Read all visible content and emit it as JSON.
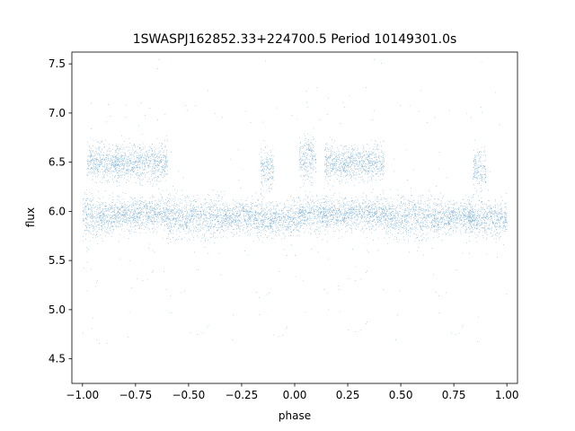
{
  "chart_data": {
    "type": "scatter",
    "title": "1SWASPJ162852.33+224700.5 Period 10149301.0s",
    "xlabel": "phase",
    "ylabel": "flux",
    "xlim": [
      -1.05,
      1.05
    ],
    "ylim": [
      4.25,
      7.62
    ],
    "x_ticks": [
      -1.0,
      -0.75,
      -0.5,
      -0.25,
      0.0,
      0.25,
      0.5,
      0.75,
      1.0
    ],
    "x_tick_labels": [
      "−1.00",
      "−0.75",
      "−0.50",
      "−0.25",
      "0.00",
      "0.25",
      "0.50",
      "0.75",
      "1.00"
    ],
    "y_ticks": [
      4.5,
      5.0,
      5.5,
      6.0,
      6.5,
      7.0,
      7.5
    ],
    "y_tick_labels": [
      "4.5",
      "5.0",
      "5.5",
      "6.0",
      "6.5",
      "7.0",
      "7.5"
    ],
    "grid": false,
    "marker_color": "#1f77b4",
    "series": [
      {
        "segments": [
          {
            "x": [
              -1.0,
              -0.96
            ],
            "center": 5.95,
            "spread": 0.2
          },
          {
            "x": [
              -0.98,
              -0.84
            ],
            "center": 6.5,
            "spread": 0.15
          },
          {
            "x": [
              -0.96,
              -0.84
            ],
            "center": 5.95,
            "spread": 0.16
          },
          {
            "x": [
              -0.84,
              -0.6
            ],
            "center": 6.5,
            "spread": 0.16
          },
          {
            "x": [
              -0.84,
              -0.6
            ],
            "center": 5.98,
            "spread": 0.14
          },
          {
            "x": [
              -0.6,
              -0.33
            ],
            "center": 5.95,
            "spread": 0.18
          },
          {
            "x": [
              -0.33,
              -0.18
            ],
            "center": 5.95,
            "spread": 0.14
          },
          {
            "x": [
              -0.16,
              -0.1
            ],
            "center": 6.45,
            "spread": 0.18
          },
          {
            "x": [
              -0.18,
              0.02
            ],
            "center": 5.93,
            "spread": 0.15
          },
          {
            "x": [
              0.02,
              0.1
            ],
            "center": 6.55,
            "spread": 0.2
          },
          {
            "x": [
              0.02,
              0.14
            ],
            "center": 5.98,
            "spread": 0.15
          },
          {
            "x": [
              0.14,
              0.42
            ],
            "center": 6.5,
            "spread": 0.15
          },
          {
            "x": [
              0.14,
              0.42
            ],
            "center": 5.98,
            "spread": 0.14
          },
          {
            "x": [
              0.42,
              0.67
            ],
            "center": 5.95,
            "spread": 0.18
          },
          {
            "x": [
              0.67,
              0.84
            ],
            "center": 5.95,
            "spread": 0.14
          },
          {
            "x": [
              0.84,
              0.9
            ],
            "center": 6.45,
            "spread": 0.18
          },
          {
            "x": [
              0.82,
              1.0
            ],
            "center": 5.93,
            "spread": 0.15
          }
        ]
      }
    ]
  }
}
